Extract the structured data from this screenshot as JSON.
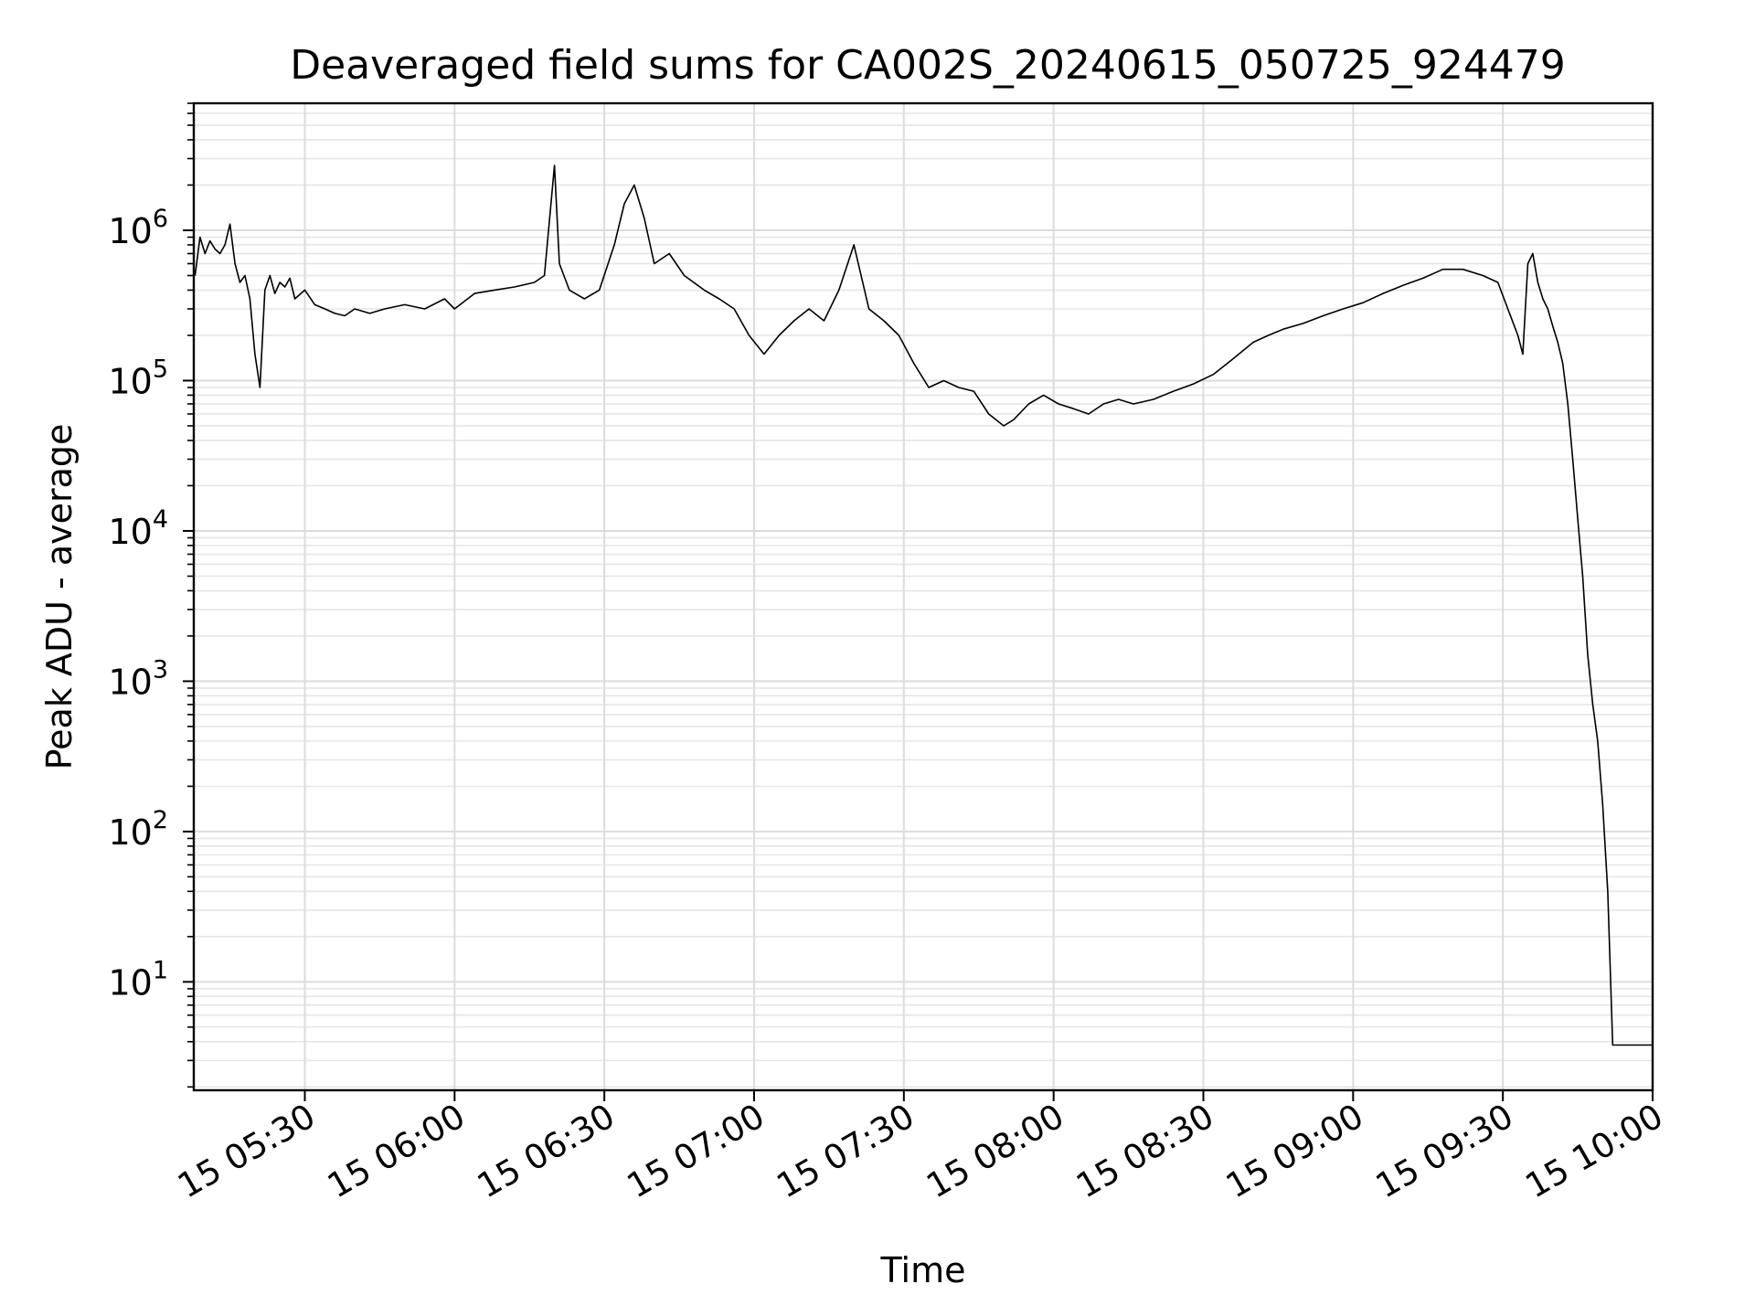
{
  "chart_data": {
    "type": "line",
    "title": "Deaveraged field sums for CA002S_20240615_050725_924479",
    "xlabel": "Time",
    "ylabel": "Peak ADU - average",
    "x_range": [
      "2024-06-15T05:07:45",
      "2024-06-15T10:00:00"
    ],
    "y_range": [
      1.9,
      7000000.0
    ],
    "y_scale": "log",
    "grid": "major and minor, light gray",
    "line_color": "#000000",
    "x_ticks": [
      {
        "time": "05:30",
        "label": "15 05:30"
      },
      {
        "time": "06:00",
        "label": "15 06:00"
      },
      {
        "time": "06:30",
        "label": "15 06:30"
      },
      {
        "time": "07:00",
        "label": "15 07:00"
      },
      {
        "time": "07:30",
        "label": "15 07:30"
      },
      {
        "time": "08:00",
        "label": "15 08:00"
      },
      {
        "time": "08:30",
        "label": "15 08:30"
      },
      {
        "time": "09:00",
        "label": "15 09:00"
      },
      {
        "time": "09:30",
        "label": "15 09:30"
      },
      {
        "time": "10:00",
        "label": "15 10:00"
      }
    ],
    "y_ticks": [
      {
        "value": 10,
        "base": "10",
        "exp": "1"
      },
      {
        "value": 100,
        "base": "10",
        "exp": "2"
      },
      {
        "value": 1000,
        "base": "10",
        "exp": "3"
      },
      {
        "value": 10000,
        "base": "10",
        "exp": "4"
      },
      {
        "value": 100000,
        "base": "10",
        "exp": "5"
      },
      {
        "value": 1000000,
        "base": "10",
        "exp": "6"
      }
    ],
    "series": [
      {
        "values": [
          [
            "05:08",
            500000
          ],
          [
            "05:09",
            900000
          ],
          [
            "05:10",
            700000
          ],
          [
            "05:11",
            850000
          ],
          [
            "05:12",
            750000
          ],
          [
            "05:13",
            700000
          ],
          [
            "05:14",
            800000
          ],
          [
            "05:15",
            1100000
          ],
          [
            "05:16",
            600000
          ],
          [
            "05:17",
            450000
          ],
          [
            "05:18",
            500000
          ],
          [
            "05:19",
            350000
          ],
          [
            "05:20",
            150000
          ],
          [
            "05:21",
            90000
          ],
          [
            "05:22",
            400000
          ],
          [
            "05:23",
            500000
          ],
          [
            "05:24",
            380000
          ],
          [
            "05:25",
            450000
          ],
          [
            "05:26",
            420000
          ],
          [
            "05:27",
            480000
          ],
          [
            "05:28",
            350000
          ],
          [
            "05:30",
            400000
          ],
          [
            "05:32",
            320000
          ],
          [
            "05:34",
            300000
          ],
          [
            "05:36",
            280000
          ],
          [
            "05:38",
            270000
          ],
          [
            "05:40",
            300000
          ],
          [
            "05:43",
            280000
          ],
          [
            "05:46",
            300000
          ],
          [
            "05:50",
            320000
          ],
          [
            "05:54",
            300000
          ],
          [
            "05:58",
            350000
          ],
          [
            "06:00",
            300000
          ],
          [
            "06:04",
            380000
          ],
          [
            "06:08",
            400000
          ],
          [
            "06:12",
            420000
          ],
          [
            "06:16",
            450000
          ],
          [
            "06:18",
            500000
          ],
          [
            "06:20",
            2700000
          ],
          [
            "06:21",
            600000
          ],
          [
            "06:23",
            400000
          ],
          [
            "06:26",
            350000
          ],
          [
            "06:29",
            400000
          ],
          [
            "06:32",
            800000
          ],
          [
            "06:34",
            1500000
          ],
          [
            "06:36",
            2000000
          ],
          [
            "06:38",
            1200000
          ],
          [
            "06:40",
            600000
          ],
          [
            "06:43",
            700000
          ],
          [
            "06:46",
            500000
          ],
          [
            "06:50",
            400000
          ],
          [
            "06:53",
            350000
          ],
          [
            "06:56",
            300000
          ],
          [
            "06:59",
            200000
          ],
          [
            "07:02",
            150000
          ],
          [
            "07:05",
            200000
          ],
          [
            "07:08",
            250000
          ],
          [
            "07:11",
            300000
          ],
          [
            "07:14",
            250000
          ],
          [
            "07:17",
            400000
          ],
          [
            "07:20",
            800000
          ],
          [
            "07:23",
            300000
          ],
          [
            "07:26",
            250000
          ],
          [
            "07:29",
            200000
          ],
          [
            "07:32",
            130000
          ],
          [
            "07:35",
            90000
          ],
          [
            "07:38",
            100000
          ],
          [
            "07:41",
            90000
          ],
          [
            "07:44",
            85000
          ],
          [
            "07:47",
            60000
          ],
          [
            "07:50",
            50000
          ],
          [
            "07:52",
            55000
          ],
          [
            "07:55",
            70000
          ],
          [
            "07:58",
            80000
          ],
          [
            "08:01",
            70000
          ],
          [
            "08:04",
            65000
          ],
          [
            "08:07",
            60000
          ],
          [
            "08:10",
            70000
          ],
          [
            "08:13",
            75000
          ],
          [
            "08:16",
            70000
          ],
          [
            "08:20",
            75000
          ],
          [
            "08:24",
            85000
          ],
          [
            "08:28",
            95000
          ],
          [
            "08:32",
            110000
          ],
          [
            "08:36",
            140000
          ],
          [
            "08:40",
            180000
          ],
          [
            "08:43",
            200000
          ],
          [
            "08:46",
            220000
          ],
          [
            "08:50",
            240000
          ],
          [
            "08:54",
            270000
          ],
          [
            "08:58",
            300000
          ],
          [
            "09:02",
            330000
          ],
          [
            "09:06",
            380000
          ],
          [
            "09:10",
            430000
          ],
          [
            "09:14",
            480000
          ],
          [
            "09:18",
            550000
          ],
          [
            "09:22",
            550000
          ],
          [
            "09:26",
            500000
          ],
          [
            "09:29",
            450000
          ],
          [
            "09:31",
            300000
          ],
          [
            "09:33",
            200000
          ],
          [
            "09:34",
            150000
          ],
          [
            "09:35",
            600000
          ],
          [
            "09:36",
            700000
          ],
          [
            "09:37",
            450000
          ],
          [
            "09:38",
            350000
          ],
          [
            "09:39",
            300000
          ],
          [
            "09:40",
            230000
          ],
          [
            "09:41",
            180000
          ],
          [
            "09:42",
            130000
          ],
          [
            "09:43",
            70000
          ],
          [
            "09:44",
            30000
          ],
          [
            "09:45",
            12000
          ],
          [
            "09:46",
            5000
          ],
          [
            "09:47",
            1500
          ],
          [
            "09:48",
            700
          ],
          [
            "09:49",
            400
          ],
          [
            "09:50",
            150
          ],
          [
            "09:51",
            40
          ],
          [
            "09:52",
            3.8
          ],
          [
            "09:56",
            3.8
          ],
          [
            "10:00",
            3.8
          ]
        ]
      }
    ]
  }
}
